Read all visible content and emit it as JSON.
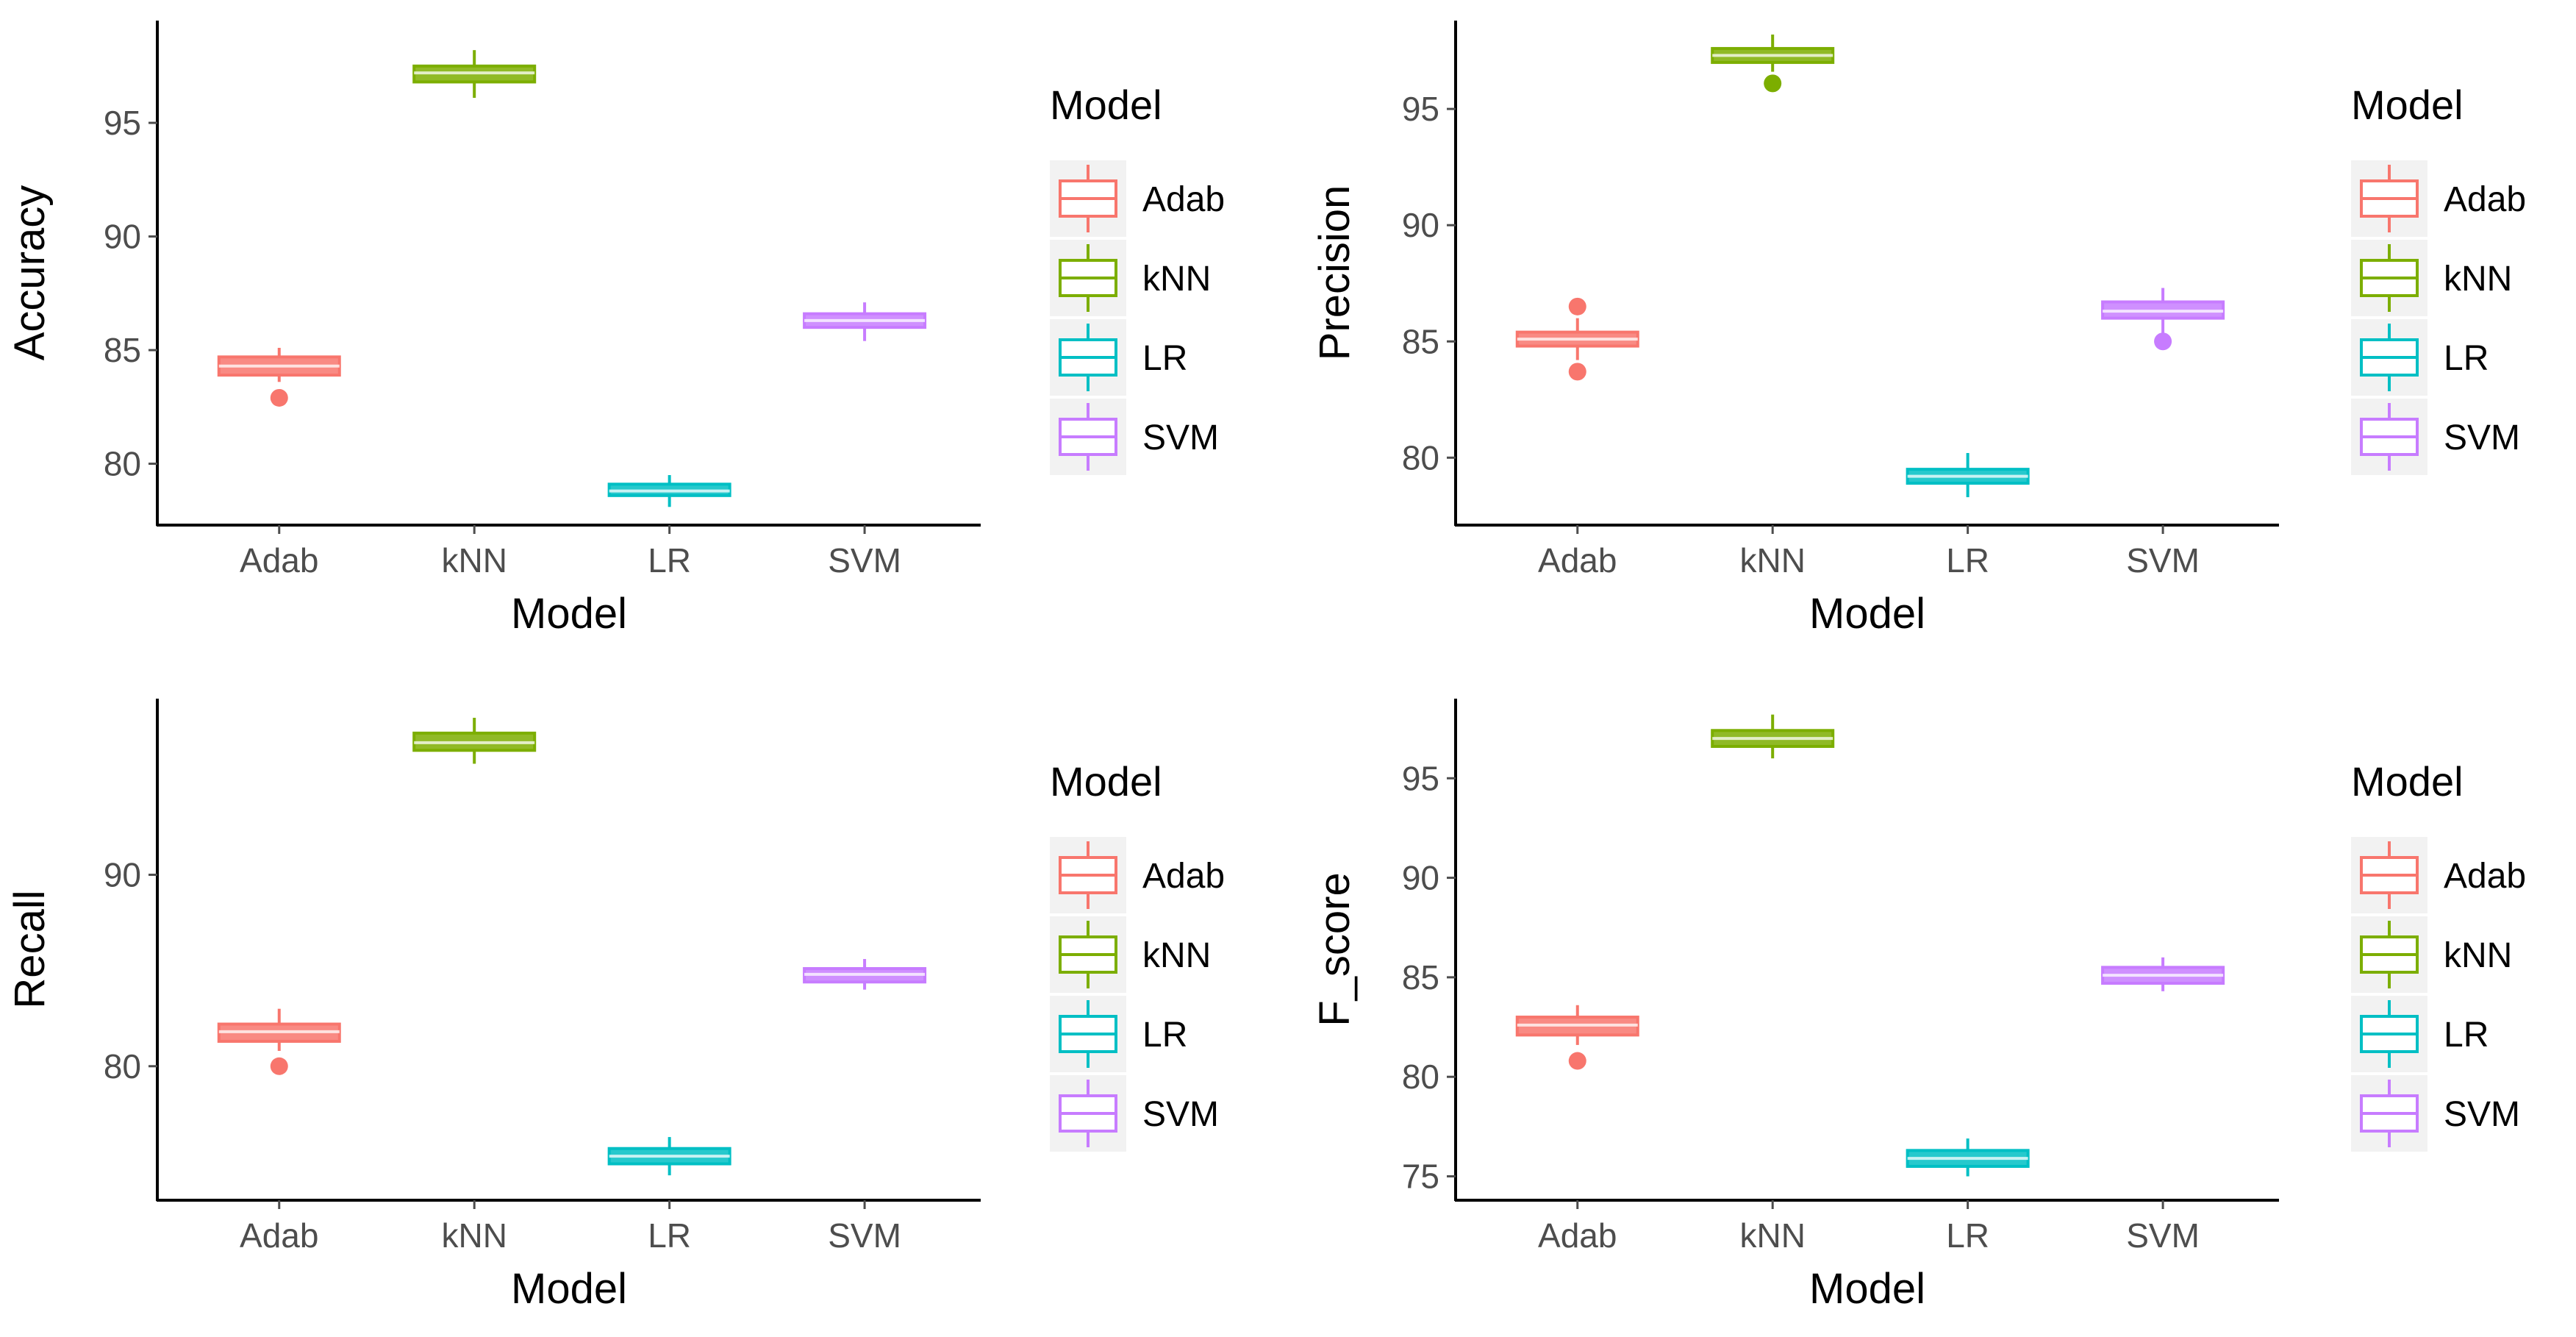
{
  "colors": {
    "Adab": "#F8766D",
    "kNN": "#7CAE00",
    "LR": "#00BFC4",
    "SVM": "#C77CFF",
    "axis": "#000000",
    "tick_label": "#4D4D4D",
    "legend_key_bg": "#F2F2F2"
  },
  "chart_data": [
    {
      "type": "box",
      "title": "",
      "xlabel": "Model",
      "ylabel": "Accuracy",
      "categories": [
        "Adab",
        "kNN",
        "LR",
        "SVM"
      ],
      "ylim": [
        77.3,
        99.5
      ],
      "yticks": [
        80,
        85,
        90,
        95
      ],
      "legend": {
        "title": "Model",
        "entries": [
          "Adab",
          "kNN",
          "LR",
          "SVM"
        ],
        "position": "right"
      },
      "boxes": [
        {
          "name": "Adab",
          "whisker_low": 83.6,
          "q1": 83.9,
          "median": 84.3,
          "q3": 84.7,
          "whisker_high": 85.1,
          "outliers": [
            82.9
          ]
        },
        {
          "name": "kNN",
          "whisker_low": 96.1,
          "q1": 96.8,
          "median": 97.2,
          "q3": 97.5,
          "whisker_high": 98.2,
          "outliers": []
        },
        {
          "name": "LR",
          "whisker_low": 78.1,
          "q1": 78.6,
          "median": 78.8,
          "q3": 79.1,
          "whisker_high": 79.5,
          "outliers": []
        },
        {
          "name": "SVM",
          "whisker_low": 85.4,
          "q1": 86.0,
          "median": 86.3,
          "q3": 86.6,
          "whisker_high": 87.1,
          "outliers": []
        }
      ]
    },
    {
      "type": "box",
      "title": "",
      "xlabel": "Model",
      "ylabel": "Precision",
      "categories": [
        "Adab",
        "kNN",
        "LR",
        "SVM"
      ],
      "ylim": [
        77.1,
        98.8
      ],
      "yticks": [
        80,
        85,
        90,
        95
      ],
      "legend": {
        "title": "Model",
        "entries": [
          "Adab",
          "kNN",
          "LR",
          "SVM"
        ],
        "position": "right"
      },
      "boxes": [
        {
          "name": "Adab",
          "whisker_low": 84.2,
          "q1": 84.8,
          "median": 85.1,
          "q3": 85.4,
          "whisker_high": 86.0,
          "outliers": [
            86.5,
            83.7
          ]
        },
        {
          "name": "kNN",
          "whisker_low": 96.6,
          "q1": 97.0,
          "median": 97.3,
          "q3": 97.6,
          "whisker_high": 98.2,
          "outliers": [
            96.1
          ]
        },
        {
          "name": "LR",
          "whisker_low": 78.3,
          "q1": 78.9,
          "median": 79.2,
          "q3": 79.5,
          "whisker_high": 80.2,
          "outliers": []
        },
        {
          "name": "SVM",
          "whisker_low": 85.3,
          "q1": 86.0,
          "median": 86.3,
          "q3": 86.7,
          "whisker_high": 87.3,
          "outliers": [
            85.0
          ]
        }
      ]
    },
    {
      "type": "box",
      "title": "",
      "xlabel": "Model",
      "ylabel": "Recall",
      "categories": [
        "Adab",
        "kNN",
        "LR",
        "SVM"
      ],
      "ylim": [
        73.0,
        99.2
      ],
      "yticks": [
        80,
        90
      ],
      "legend": {
        "title": "Model",
        "entries": [
          "Adab",
          "kNN",
          "LR",
          "SVM"
        ],
        "position": "right"
      },
      "boxes": [
        {
          "name": "Adab",
          "whisker_low": 80.8,
          "q1": 81.3,
          "median": 81.8,
          "q3": 82.2,
          "whisker_high": 83.0,
          "outliers": [
            80.0
          ]
        },
        {
          "name": "kNN",
          "whisker_low": 95.8,
          "q1": 96.5,
          "median": 96.9,
          "q3": 97.4,
          "whisker_high": 98.2,
          "outliers": []
        },
        {
          "name": "LR",
          "whisker_low": 74.3,
          "q1": 74.9,
          "median": 75.3,
          "q3": 75.7,
          "whisker_high": 76.3,
          "outliers": []
        },
        {
          "name": "SVM",
          "whisker_low": 84.0,
          "q1": 84.4,
          "median": 84.8,
          "q3": 85.1,
          "whisker_high": 85.6,
          "outliers": []
        }
      ]
    },
    {
      "type": "box",
      "title": "",
      "xlabel": "Model",
      "ylabel": "F_score",
      "categories": [
        "Adab",
        "kNN",
        "LR",
        "SVM"
      ],
      "ylim": [
        73.8,
        99.0
      ],
      "yticks": [
        75,
        80,
        85,
        90,
        95
      ],
      "legend": {
        "title": "Model",
        "entries": [
          "Adab",
          "kNN",
          "LR",
          "SVM"
        ],
        "position": "right"
      },
      "boxes": [
        {
          "name": "Adab",
          "whisker_low": 81.6,
          "q1": 82.1,
          "median": 82.6,
          "q3": 83.0,
          "whisker_high": 83.6,
          "outliers": [
            80.8
          ]
        },
        {
          "name": "kNN",
          "whisker_low": 96.0,
          "q1": 96.6,
          "median": 97.0,
          "q3": 97.4,
          "whisker_high": 98.2,
          "outliers": []
        },
        {
          "name": "LR",
          "whisker_low": 75.0,
          "q1": 75.5,
          "median": 75.9,
          "q3": 76.3,
          "whisker_high": 76.9,
          "outliers": []
        },
        {
          "name": "SVM",
          "whisker_low": 84.3,
          "q1": 84.7,
          "median": 85.1,
          "q3": 85.5,
          "whisker_high": 86.0,
          "outliers": []
        }
      ]
    }
  ]
}
